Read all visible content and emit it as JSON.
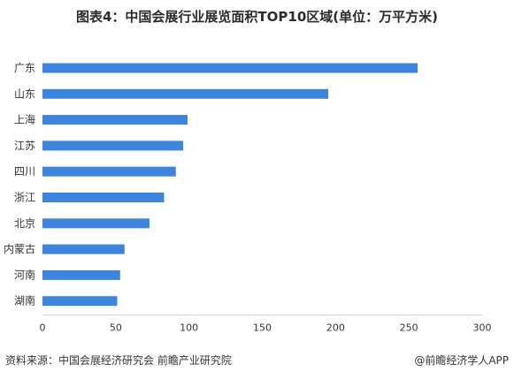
{
  "chart_data": {
    "type": "bar",
    "orientation": "horizontal",
    "title": "图表4：中国会展行业展览面积TOP10区域(单位：万平方米)",
    "categories": [
      "广东",
      "山东",
      "上海",
      "江苏",
      "四川",
      "浙江",
      "北京",
      "内蒙古",
      "河南",
      "湖南"
    ],
    "values": [
      256,
      195,
      99,
      96,
      91,
      83,
      73,
      56,
      53,
      51
    ],
    "xlim": [
      0,
      300
    ],
    "xticks": [
      0,
      50,
      100,
      150,
      200,
      250,
      300
    ],
    "bar_color": "#3d85dc",
    "grid": false
  },
  "footer": {
    "source": "资料来源：中国会展经济研究会 前瞻产业研究院",
    "credit": "@前瞻经济学人APP"
  }
}
